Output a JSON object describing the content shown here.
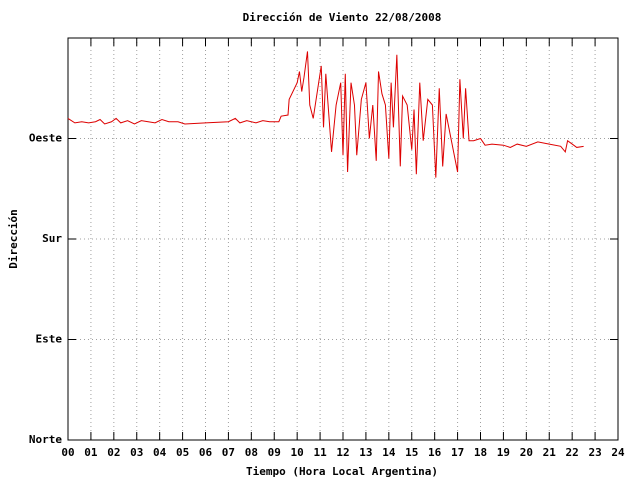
{
  "chart_data": {
    "type": "line",
    "title": "Dirección de Viento 22/08/2008",
    "xlabel": "Tiempo (Hora Local Argentina)",
    "ylabel": "Dirección",
    "color": "#dd0000",
    "grid": true,
    "xlim": [
      0,
      24
    ],
    "ylim": [
      0,
      360
    ],
    "xticks": [
      {
        "value": 0,
        "label": "00"
      },
      {
        "value": 1,
        "label": "01"
      },
      {
        "value": 2,
        "label": "02"
      },
      {
        "value": 3,
        "label": "03"
      },
      {
        "value": 4,
        "label": "04"
      },
      {
        "value": 5,
        "label": "05"
      },
      {
        "value": 6,
        "label": "06"
      },
      {
        "value": 7,
        "label": "07"
      },
      {
        "value": 8,
        "label": "08"
      },
      {
        "value": 9,
        "label": "09"
      },
      10,
      11,
      12,
      13,
      14,
      15,
      16,
      17,
      18,
      19,
      20,
      21,
      22,
      23,
      24
    ],
    "yticks": [
      {
        "value": 0,
        "label": "Norte"
      },
      {
        "value": 90,
        "label": "Este"
      },
      {
        "value": 180,
        "label": "Sur"
      },
      {
        "value": 270,
        "label": "Oeste"
      }
    ],
    "x": [
      0.0,
      0.3,
      0.6,
      0.9,
      1.2,
      1.4,
      1.6,
      1.9,
      2.1,
      2.3,
      2.6,
      2.9,
      3.2,
      3.5,
      3.8,
      4.1,
      4.4,
      4.8,
      5.1,
      6.0,
      7.0,
      7.3,
      7.5,
      7.8,
      8.2,
      8.5,
      8.8,
      9.2,
      9.3,
      9.6,
      9.65,
      10.0,
      10.1,
      10.2,
      10.3,
      10.45,
      10.55,
      10.7,
      11.05,
      11.15,
      11.25,
      11.35,
      11.5,
      11.7,
      11.9,
      12.0,
      12.1,
      12.2,
      12.35,
      12.5,
      12.6,
      12.8,
      13.0,
      13.15,
      13.3,
      13.45,
      13.55,
      13.7,
      13.85,
      14.0,
      14.1,
      14.2,
      14.35,
      14.5,
      14.6,
      14.8,
      15.0,
      15.1,
      15.2,
      15.35,
      15.5,
      15.7,
      15.9,
      16.05,
      16.2,
      16.35,
      16.5,
      17.0,
      17.1,
      17.25,
      17.35,
      17.5,
      17.7,
      18.0,
      18.2,
      18.5,
      19.0,
      19.3,
      19.6,
      20.0,
      20.5,
      21.0,
      21.5,
      21.7,
      21.8,
      22.0,
      22.2,
      22.5
    ],
    "values": [
      288,
      284,
      285,
      284,
      285,
      287,
      283,
      285,
      288,
      284,
      286,
      283,
      286,
      285,
      284,
      287,
      285,
      285,
      283,
      284,
      285,
      288,
      284,
      286,
      284,
      286,
      285,
      285,
      290,
      291,
      305,
      320,
      330,
      312,
      325,
      348,
      300,
      288,
      335,
      280,
      328,
      300,
      258,
      300,
      320,
      255,
      328,
      240,
      320,
      300,
      255,
      305,
      320,
      270,
      300,
      250,
      330,
      310,
      300,
      252,
      320,
      280,
      345,
      245,
      308,
      300,
      260,
      296,
      238,
      320,
      268,
      305,
      300,
      235,
      315,
      245,
      292,
      240,
      323,
      270,
      315,
      268,
      268,
      270,
      264,
      265,
      264,
      262,
      265,
      263,
      267,
      265,
      263,
      258,
      268,
      265,
      262,
      263
    ]
  }
}
